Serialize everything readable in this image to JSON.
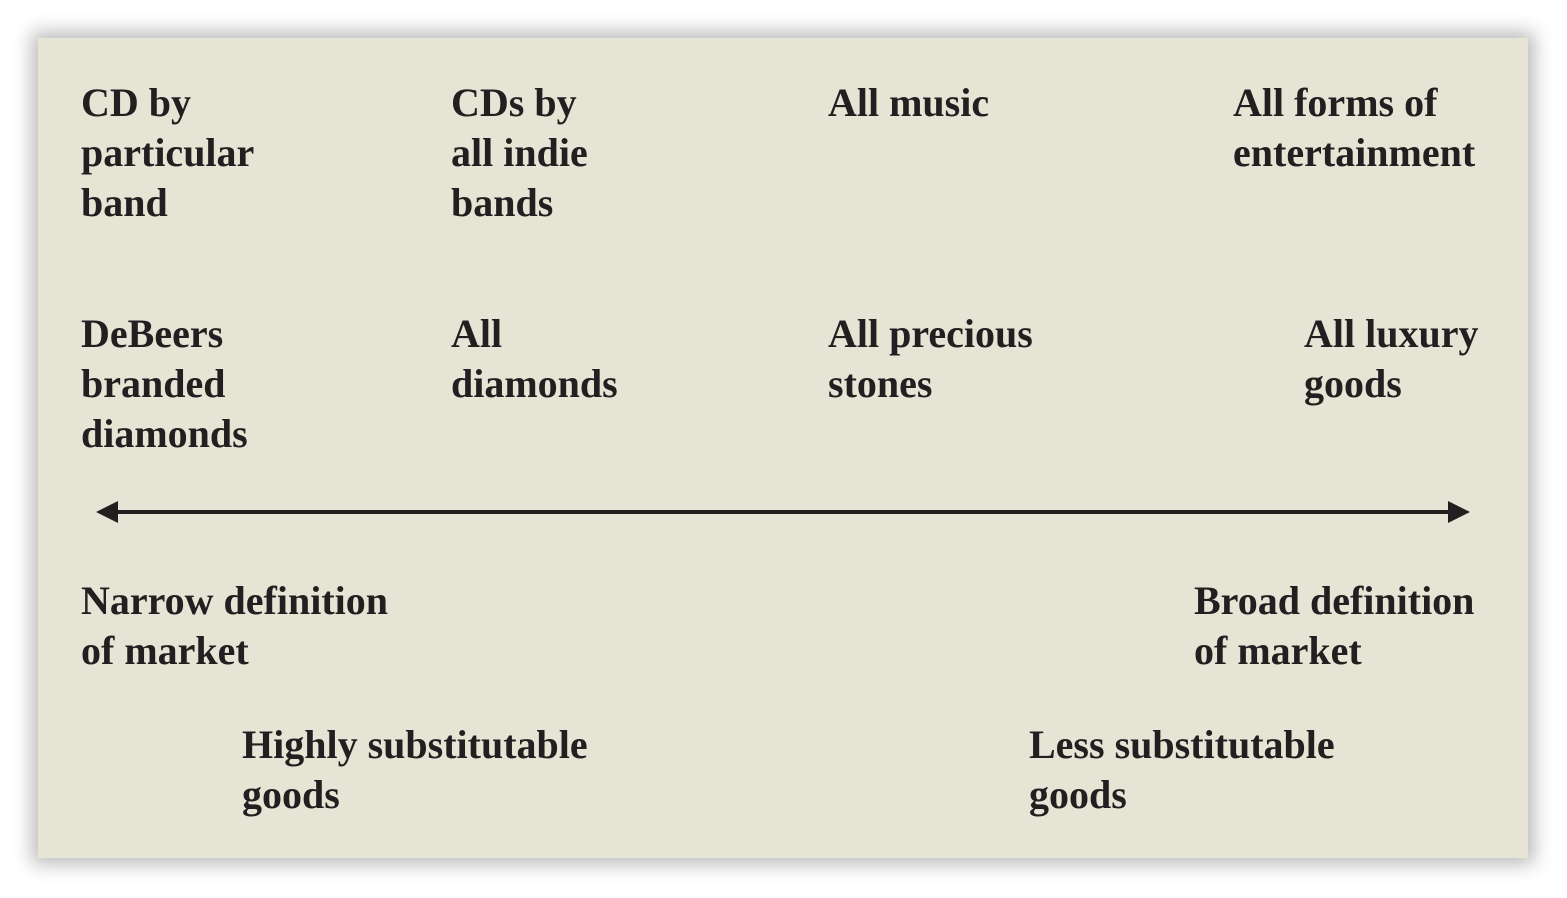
{
  "row_music": {
    "item1": "CD by\nparticular\nband",
    "item2": "CDs by\nall indie\nbands",
    "item3": "All music",
    "item4": "All forms of\nentertainment"
  },
  "row_diamonds": {
    "item1": "DeBeers\nbranded\ndiamonds",
    "item2": "All\ndiamonds",
    "item3": "All precious\nstones",
    "item4": "All luxury\ngoods"
  },
  "scale": {
    "left_label": "Narrow definition\nof market",
    "right_label": "Broad definition\nof market"
  },
  "substitutability": {
    "left_label": "Highly substitutable\ngoods",
    "right_label": "Less substitutable\ngoods"
  },
  "colors": {
    "panel_background": "#e6e4d5",
    "text": "#231f20"
  }
}
